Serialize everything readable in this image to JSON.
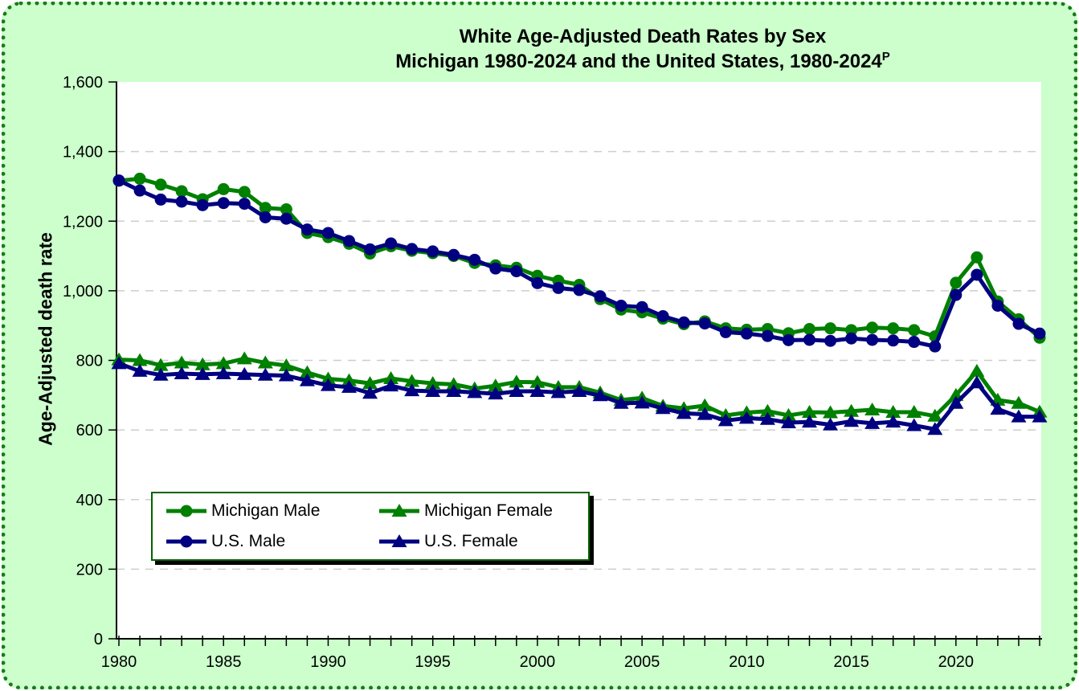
{
  "frame": {
    "background_color": "#ccffcc",
    "border_color": "#1b7a1b"
  },
  "title": {
    "line1": "White Age-Adjusted Death Rates by Sex",
    "line2": "Michigan 1980-2024 and the United States, 1980-2024",
    "line2_superscript": "P"
  },
  "y_axis": {
    "title": "Age-Adjusted death rate",
    "min": 0,
    "max": 1600,
    "tick_interval": 200,
    "tick_labels": [
      "0",
      "200",
      "400",
      "600",
      "800",
      "1,000",
      "1,200",
      "1,400",
      "1,600"
    ]
  },
  "x_axis": {
    "min": 1980,
    "max": 2024,
    "label_interval": 5,
    "tick_interval": 1,
    "tick_labels": [
      "1980",
      "1985",
      "1990",
      "1995",
      "2000",
      "2005",
      "2010",
      "2015",
      "2020"
    ]
  },
  "plot": {
    "background_color": "#ffffff",
    "gridline_color": "#cdcdcd",
    "axis_color": "#000000"
  },
  "chart_data": {
    "type": "line",
    "title": "White Age-Adjusted Death Rates by Sex — Michigan 1980-2024 and the United States, 1980-2024 (P = provisional)",
    "xlabel": "",
    "ylabel": "Age-Adjusted death rate",
    "xlim": [
      1980,
      2024
    ],
    "ylim": [
      0,
      1600
    ],
    "grid": "horizontal-dashed",
    "legend_position": "inside-lower-left",
    "x": [
      1980,
      1981,
      1982,
      1983,
      1984,
      1985,
      1986,
      1987,
      1988,
      1989,
      1990,
      1991,
      1992,
      1993,
      1994,
      1995,
      1996,
      1997,
      1998,
      1999,
      2000,
      2001,
      2002,
      2003,
      2004,
      2005,
      2006,
      2007,
      2008,
      2009,
      2010,
      2011,
      2012,
      2013,
      2014,
      2015,
      2016,
      2017,
      2018,
      2019,
      2020,
      2021,
      2022,
      2023,
      2024
    ],
    "series": [
      {
        "name": "Michigan Male",
        "color": "#008000",
        "marker": "circle",
        "values": [
          1316,
          1322,
          1305,
          1286,
          1263,
          1292,
          1284,
          1238,
          1234,
          1166,
          1154,
          1135,
          1107,
          1128,
          1115,
          1108,
          1100,
          1080,
          1073,
          1066,
          1043,
          1029,
          1017,
          976,
          946,
          938,
          920,
          904,
          912,
          892,
          888,
          890,
          878,
          890,
          892,
          887,
          894,
          892,
          887,
          869,
          1023,
          1096,
          969,
          918,
          865
        ]
      },
      {
        "name": "Michigan Female",
        "color": "#008000",
        "marker": "triangle",
        "values": [
          802,
          800,
          786,
          793,
          788,
          791,
          805,
          793,
          785,
          765,
          747,
          742,
          734,
          748,
          740,
          734,
          731,
          719,
          727,
          738,
          737,
          723,
          723,
          707,
          686,
          692,
          669,
          662,
          670,
          642,
          650,
          654,
          642,
          651,
          650,
          654,
          658,
          651,
          651,
          640,
          700,
          769,
          686,
          677,
          652
        ]
      },
      {
        "name": "U.S. Male",
        "color": "#000080",
        "marker": "circle",
        "values": [
          1317,
          1288,
          1262,
          1256,
          1246,
          1252,
          1250,
          1211,
          1207,
          1176,
          1166,
          1143,
          1119,
          1136,
          1120,
          1113,
          1103,
          1089,
          1064,
          1056,
          1022,
          1008,
          1002,
          984,
          957,
          953,
          927,
          909,
          906,
          881,
          877,
          870,
          858,
          859,
          856,
          863,
          859,
          857,
          853,
          840,
          988,
          1046,
          957,
          905,
          877
        ]
      },
      {
        "name": "U.S. Female",
        "color": "#000080",
        "marker": "triangle",
        "values": [
          791,
          769,
          758,
          762,
          760,
          762,
          760,
          758,
          756,
          742,
          728,
          723,
          706,
          727,
          713,
          711,
          711,
          708,
          704,
          711,
          711,
          708,
          711,
          699,
          677,
          678,
          662,
          648,
          645,
          627,
          634,
          631,
          621,
          623,
          615,
          625,
          619,
          623,
          613,
          602,
          677,
          736,
          660,
          638,
          638
        ]
      }
    ]
  }
}
